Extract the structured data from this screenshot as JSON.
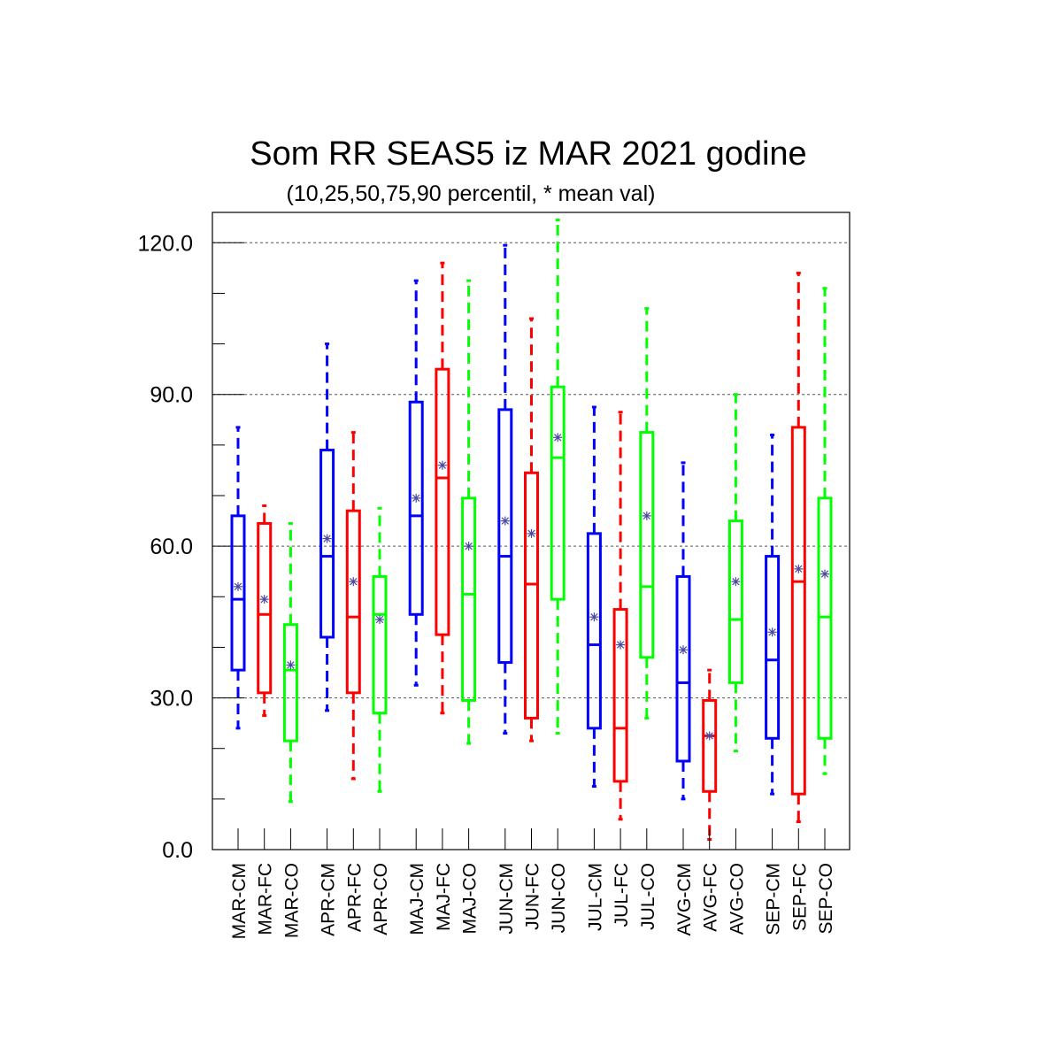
{
  "chart_data": {
    "type": "box",
    "title": "Som RR SEAS5 iz MAR 2021 godine",
    "subtitle": "(10,25,50,75,90 percentil, * mean val)",
    "ylim": [
      0,
      126
    ],
    "yticks": [
      {
        "value": 0,
        "label": "0.0"
      },
      {
        "value": 30,
        "label": "30.0"
      },
      {
        "value": 60,
        "label": "60.0"
      },
      {
        "value": 90,
        "label": "90.0"
      },
      {
        "value": 120,
        "label": "120.0"
      }
    ],
    "grid": "dashed horizontal at labeled ticks",
    "colors": {
      "CM": "#0000ff",
      "FC": "#ff0000",
      "CO": "#00ff00",
      "mean_marker": "#4a4aa0"
    },
    "categories": [
      {
        "label": "MAR-CM",
        "type": "CM",
        "p10": 24,
        "p25": 35.5,
        "p50": 49.5,
        "p75": 66,
        "p90": 83.5,
        "mean": 52
      },
      {
        "label": "MAR-FC",
        "type": "FC",
        "p10": 26.5,
        "p25": 31,
        "p50": 46.5,
        "p75": 64.5,
        "p90": 68,
        "mean": 49.5
      },
      {
        "label": "MAR-CO",
        "type": "CO",
        "p10": 9.5,
        "p25": 21.5,
        "p50": 35.5,
        "p75": 44.5,
        "p90": 64.5,
        "mean": 36.5
      },
      {
        "label": "APR-CM",
        "type": "CM",
        "p10": 27.5,
        "p25": 42,
        "p50": 58,
        "p75": 79,
        "p90": 100,
        "mean": 61.5
      },
      {
        "label": "APR-FC",
        "type": "FC",
        "p10": 14,
        "p25": 31,
        "p50": 46,
        "p75": 67,
        "p90": 82.5,
        "mean": 53
      },
      {
        "label": "APR-CO",
        "type": "CO",
        "p10": 11.5,
        "p25": 27,
        "p50": 46.5,
        "p75": 54,
        "p90": 67.5,
        "mean": 45.5
      },
      {
        "label": "MAJ-CM",
        "type": "CM",
        "p10": 32.5,
        "p25": 46.5,
        "p50": 66,
        "p75": 88.5,
        "p90": 112.5,
        "mean": 69.5
      },
      {
        "label": "MAJ-FC",
        "type": "FC",
        "p10": 27,
        "p25": 42.5,
        "p50": 73.5,
        "p75": 95,
        "p90": 116,
        "mean": 76
      },
      {
        "label": "MAJ-CO",
        "type": "CO",
        "p10": 21,
        "p25": 29.5,
        "p50": 50.5,
        "p75": 69.5,
        "p90": 112.5,
        "mean": 60
      },
      {
        "label": "JUN-CM",
        "type": "CM",
        "p10": 23,
        "p25": 37,
        "p50": 58,
        "p75": 87,
        "p90": 119.5,
        "mean": 65
      },
      {
        "label": "JUN-FC",
        "type": "FC",
        "p10": 21.5,
        "p25": 26,
        "p50": 52.5,
        "p75": 74.5,
        "p90": 105,
        "mean": 62.5
      },
      {
        "label": "JUN-CO",
        "type": "CO",
        "p10": 23,
        "p25": 49.5,
        "p50": 77.5,
        "p75": 91.5,
        "p90": 124.5,
        "mean": 81.5
      },
      {
        "label": "JUL-CM",
        "type": "CM",
        "p10": 12.5,
        "p25": 24,
        "p50": 40.5,
        "p75": 62.5,
        "p90": 87.5,
        "mean": 46
      },
      {
        "label": "JUL-FC",
        "type": "FC",
        "p10": 6,
        "p25": 13.5,
        "p50": 24,
        "p75": 47.5,
        "p90": 86.5,
        "mean": 40.5
      },
      {
        "label": "JUL-CO",
        "type": "CO",
        "p10": 26,
        "p25": 38,
        "p50": 52,
        "p75": 82.5,
        "p90": 107,
        "mean": 66
      },
      {
        "label": "AVG-CM",
        "type": "CM",
        "p10": 10,
        "p25": 17.5,
        "p50": 33,
        "p75": 54,
        "p90": 76.5,
        "mean": 39.5
      },
      {
        "label": "AVG-FC",
        "type": "FC",
        "p10": 2,
        "p25": 11.5,
        "p50": 22.5,
        "p75": 29.5,
        "p90": 35.5,
        "mean": 22.5
      },
      {
        "label": "AVG-CO",
        "type": "CO",
        "p10": 19.5,
        "p25": 33,
        "p50": 45.5,
        "p75": 65,
        "p90": 90,
        "mean": 53
      },
      {
        "label": "SEP-CM",
        "type": "CM",
        "p10": 11,
        "p25": 22,
        "p50": 37.5,
        "p75": 58,
        "p90": 82,
        "mean": 43
      },
      {
        "label": "SEP-FC",
        "type": "FC",
        "p10": 5.5,
        "p25": 11,
        "p50": 53,
        "p75": 83.5,
        "p90": 114,
        "mean": 55.5
      },
      {
        "label": "SEP-CO",
        "type": "CO",
        "p10": 15,
        "p25": 22,
        "p50": 46,
        "p75": 69.5,
        "p90": 111,
        "mean": 54.5
      }
    ]
  }
}
